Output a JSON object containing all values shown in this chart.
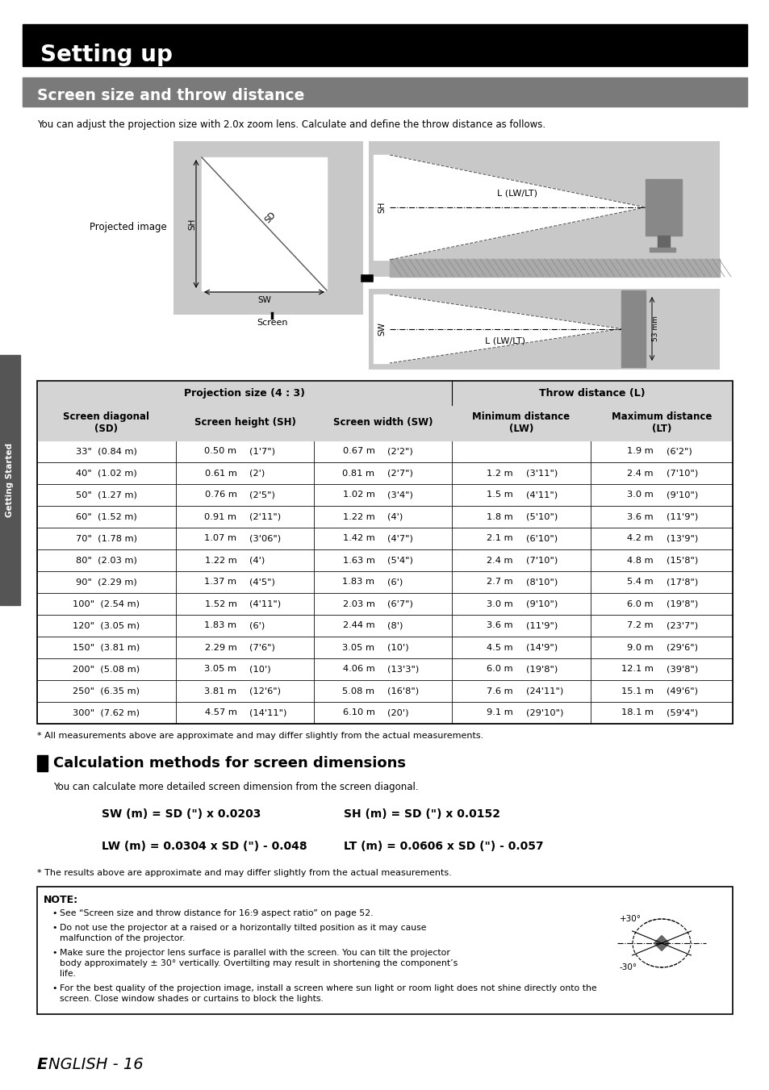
{
  "title_main": "Setting up",
  "title_sub": "Screen size and throw distance",
  "intro_text": "You can adjust the projection size with 2.0x zoom lens. Calculate and define the throw distance as follows.",
  "table_header_top": [
    "Projection size (4 : 3)",
    "Throw distance (L)"
  ],
  "table_header_sub": [
    "Screen diagonal\n(SD)",
    "Screen height (SH)",
    "Screen width (SW)",
    "Minimum distance\n(LW)",
    "Maximum distance\n(LT)"
  ],
  "table_data": [
    [
      "33\"  (0.84 m)",
      "0.50 m",
      "(1'7\")",
      "0.67 m",
      "(2'2\")",
      "",
      "",
      "1.9 m",
      "(6'2\")"
    ],
    [
      "40\"  (1.02 m)",
      "0.61 m",
      "(2')",
      "0.81 m",
      "(2'7\")",
      "1.2 m",
      "(3'11\")",
      "2.4 m",
      "(7'10\")"
    ],
    [
      "50\"  (1.27 m)",
      "0.76 m",
      "(2'5\")",
      "1.02 m",
      "(3'4\")",
      "1.5 m",
      "(4'11\")",
      "3.0 m",
      "(9'10\")"
    ],
    [
      "60\"  (1.52 m)",
      "0.91 m",
      "(2'11\")",
      "1.22 m",
      "(4')",
      "1.8 m",
      "(5'10\")",
      "3.6 m",
      "(11'9\")"
    ],
    [
      "70\"  (1.78 m)",
      "1.07 m",
      "(3'06\")",
      "1.42 m",
      "(4'7\")",
      "2.1 m",
      "(6'10\")",
      "4.2 m",
      "(13'9\")"
    ],
    [
      "80\"  (2.03 m)",
      "1.22 m",
      "(4')",
      "1.63 m",
      "(5'4\")",
      "2.4 m",
      "(7'10\")",
      "4.8 m",
      "(15'8\")"
    ],
    [
      "90\"  (2.29 m)",
      "1.37 m",
      "(4'5\")",
      "1.83 m",
      "(6')",
      "2.7 m",
      "(8'10\")",
      "5.4 m",
      "(17'8\")"
    ],
    [
      "100\"  (2.54 m)",
      "1.52 m",
      "(4'11\")",
      "2.03 m",
      "(6'7\")",
      "3.0 m",
      "(9'10\")",
      "6.0 m",
      "(19'8\")"
    ],
    [
      "120\"  (3.05 m)",
      "1.83 m",
      "(6')",
      "2.44 m",
      "(8')",
      "3.6 m",
      "(11'9\")",
      "7.2 m",
      "(23'7\")"
    ],
    [
      "150\"  (3.81 m)",
      "2.29 m",
      "(7'6\")",
      "3.05 m",
      "(10')",
      "4.5 m",
      "(14'9\")",
      "9.0 m",
      "(29'6\")"
    ],
    [
      "200\"  (5.08 m)",
      "3.05 m",
      "(10')",
      "4.06 m",
      "(13'3\")",
      "6.0 m",
      "(19'8\")",
      "12.1 m",
      "(39'8\")"
    ],
    [
      "250\"  (6.35 m)",
      "3.81 m",
      "(12'6\")",
      "5.08 m",
      "(16'8\")",
      "7.6 m",
      "(24'11\")",
      "15.1 m",
      "(49'6\")"
    ],
    [
      "300\"  (7.62 m)",
      "4.57 m",
      "(14'11\")",
      "6.10 m",
      "(20')",
      "9.1 m",
      "(29'10\")",
      "18.1 m",
      "(59'4\")"
    ]
  ],
  "footnote_table": "* All measurements above are approximate and may differ slightly from the actual measurements.",
  "calc_title": "Calculation methods for screen dimensions",
  "calc_intro": "You can calculate more detailed screen dimension from the screen diagonal.",
  "formula1_left": "SW (m) = SD (\") x 0.0203",
  "formula1_right": "SH (m) = SD (\") x 0.0152",
  "formula2_left": "LW (m) = 0.0304 x SD (\") - 0.048",
  "formula2_right": "LT (m) = 0.0606 x SD (\") - 0.057",
  "footnote_calc": "* The results above are approximate and may differ slightly from the actual measurements.",
  "note_title": "NOTE:",
  "note_bullets": [
    "See “Screen size and throw distance for 16:9 aspect ratio” on page 52.",
    "Do not use the projector at a raised or a horizontally tilted position as it may cause\nmalfunction of the projector.",
    "Make sure the projector lens surface is parallel with the screen. You can tilt the projector\nbody approximately ± 30° vertically. Overtilting may result in shortening the component’s\nlife.",
    "For the best quality of the projection image, install a screen where sun light or room light does not shine directly onto the\nscreen. Close window shades or curtains to block the lights."
  ],
  "footer_text": "E",
  "footer_text2": "NGLISH - 16",
  "sidebar_text": "Getting Started",
  "bg_color": "#ffffff",
  "header_black": "#000000",
  "header_gray": "#7a7a7a",
  "table_header_bg": "#d4d4d4",
  "note_border": "#000000"
}
